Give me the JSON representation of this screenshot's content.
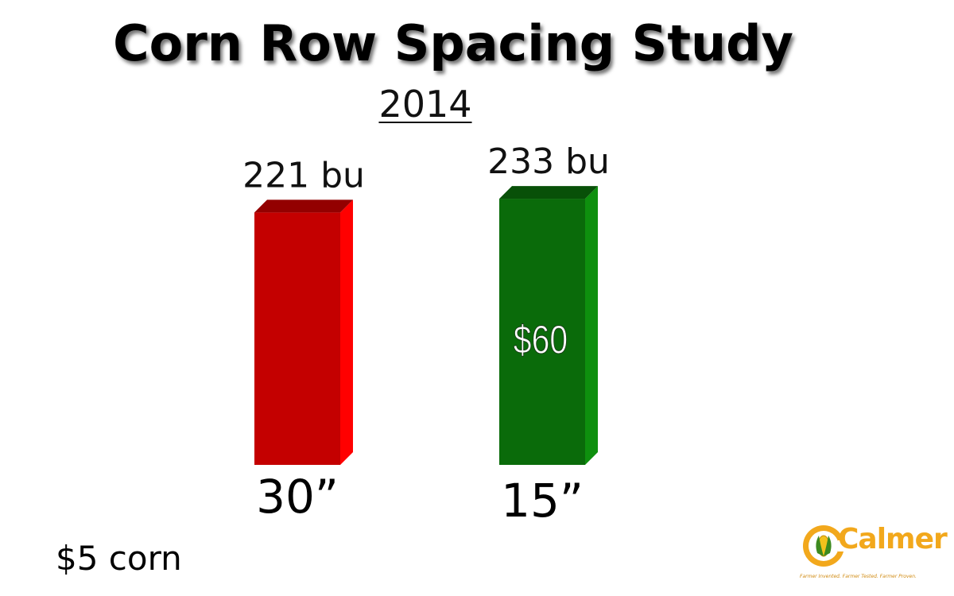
{
  "chart_data": {
    "type": "bar",
    "title": "Corn Row Spacing Study",
    "subtitle": "2014",
    "categories": [
      "30”",
      "15”"
    ],
    "values": [
      221,
      233
    ],
    "value_labels": [
      "221 bu",
      "233 bu"
    ],
    "bar_colors": [
      "#c40000",
      "#0a6b0a"
    ],
    "annotation": {
      "category_index": 1,
      "text": "$60"
    },
    "ylim": [
      0,
      240
    ],
    "grid": false,
    "legend": "none",
    "xlabel": "",
    "ylabel": ""
  },
  "footnote": "$5 corn",
  "logo": {
    "wordmark": "Calmer",
    "tagline": "Farmer Invented. Farmer Tested. Farmer Proven."
  }
}
